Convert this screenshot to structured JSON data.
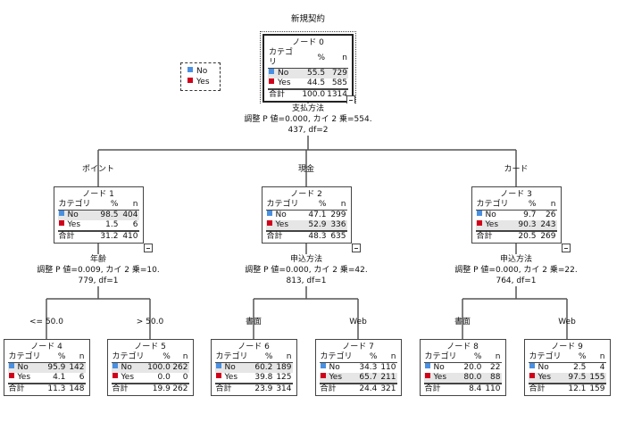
{
  "title": "新規契約",
  "colors": {
    "No": "#4a90e2",
    "Yes": "#d0021b",
    "highlight": "#e6e6e6"
  },
  "legend": [
    {
      "label": "No"
    },
    {
      "label": "Yes"
    }
  ],
  "table_headers": {
    "category": "カテゴリ",
    "pct": "%",
    "n": "n",
    "total": "合計"
  },
  "nodes": [
    {
      "title": "ノード 0",
      "rows": [
        {
          "cat": "No",
          "pct": "55.5",
          "n": "729"
        },
        {
          "cat": "Yes",
          "pct": "44.5",
          "n": "585"
        }
      ],
      "total_pct": "100.0",
      "total_n": "1314",
      "highlight": 0
    },
    {
      "title": "ノード 1",
      "rows": [
        {
          "cat": "No",
          "pct": "98.5",
          "n": "404"
        },
        {
          "cat": "Yes",
          "pct": "1.5",
          "n": "6"
        }
      ],
      "total_pct": "31.2",
      "total_n": "410",
      "highlight": 0
    },
    {
      "title": "ノード 2",
      "rows": [
        {
          "cat": "No",
          "pct": "47.1",
          "n": "299"
        },
        {
          "cat": "Yes",
          "pct": "52.9",
          "n": "336"
        }
      ],
      "total_pct": "48.3",
      "total_n": "635",
      "highlight": 1
    },
    {
      "title": "ノード 3",
      "rows": [
        {
          "cat": "No",
          "pct": "9.7",
          "n": "26"
        },
        {
          "cat": "Yes",
          "pct": "90.3",
          "n": "243"
        }
      ],
      "total_pct": "20.5",
      "total_n": "269",
      "highlight": 1
    },
    {
      "title": "ノード 4",
      "rows": [
        {
          "cat": "No",
          "pct": "95.9",
          "n": "142"
        },
        {
          "cat": "Yes",
          "pct": "4.1",
          "n": "6"
        }
      ],
      "total_pct": "11.3",
      "total_n": "148",
      "highlight": 0
    },
    {
      "title": "ノード 5",
      "rows": [
        {
          "cat": "No",
          "pct": "100.0",
          "n": "262"
        },
        {
          "cat": "Yes",
          "pct": "0.0",
          "n": "0"
        }
      ],
      "total_pct": "19.9",
      "total_n": "262",
      "highlight": 0
    },
    {
      "title": "ノード 6",
      "rows": [
        {
          "cat": "No",
          "pct": "60.2",
          "n": "189"
        },
        {
          "cat": "Yes",
          "pct": "39.8",
          "n": "125"
        }
      ],
      "total_pct": "23.9",
      "total_n": "314",
      "highlight": 0
    },
    {
      "title": "ノード 7",
      "rows": [
        {
          "cat": "No",
          "pct": "34.3",
          "n": "110"
        },
        {
          "cat": "Yes",
          "pct": "65.7",
          "n": "211"
        }
      ],
      "total_pct": "24.4",
      "total_n": "321",
      "highlight": 1
    },
    {
      "title": "ノード 8",
      "rows": [
        {
          "cat": "No",
          "pct": "20.0",
          "n": "22"
        },
        {
          "cat": "Yes",
          "pct": "80.0",
          "n": "88"
        }
      ],
      "total_pct": "8.4",
      "total_n": "110",
      "highlight": 1
    },
    {
      "title": "ノード 9",
      "rows": [
        {
          "cat": "No",
          "pct": "2.5",
          "n": "4"
        },
        {
          "cat": "Yes",
          "pct": "97.5",
          "n": "155"
        }
      ],
      "total_pct": "12.1",
      "total_n": "159",
      "highlight": 1
    }
  ],
  "splits": [
    {
      "node": 0,
      "lines": [
        "支払方法",
        "調整 P 値=0.000, カイ 2 乗=554.",
        "437, df=2"
      ]
    },
    {
      "node": 1,
      "lines": [
        "年齢",
        "調整 P 値=0.009, カイ 2 乗=10.",
        "779, df=1"
      ]
    },
    {
      "node": 2,
      "lines": [
        "申込方法",
        "調整 P 値=0.000, カイ 2 乗=42.",
        "813, df=1"
      ]
    },
    {
      "node": 3,
      "lines": [
        "申込方法",
        "調整 P 値=0.000, カイ 2 乗=22.",
        "764, df=1"
      ]
    }
  ],
  "branch_labels": [
    {
      "node": 1,
      "label": "ポイント"
    },
    {
      "node": 2,
      "label": "現金"
    },
    {
      "node": 3,
      "label": "カード"
    },
    {
      "node": 4,
      "label": "<= 50.0"
    },
    {
      "node": 5,
      "label": "> 50.0"
    },
    {
      "node": 6,
      "label": "書面"
    },
    {
      "node": 7,
      "label": "Web"
    },
    {
      "node": 8,
      "label": "書面"
    },
    {
      "node": 9,
      "label": "Web"
    }
  ]
}
